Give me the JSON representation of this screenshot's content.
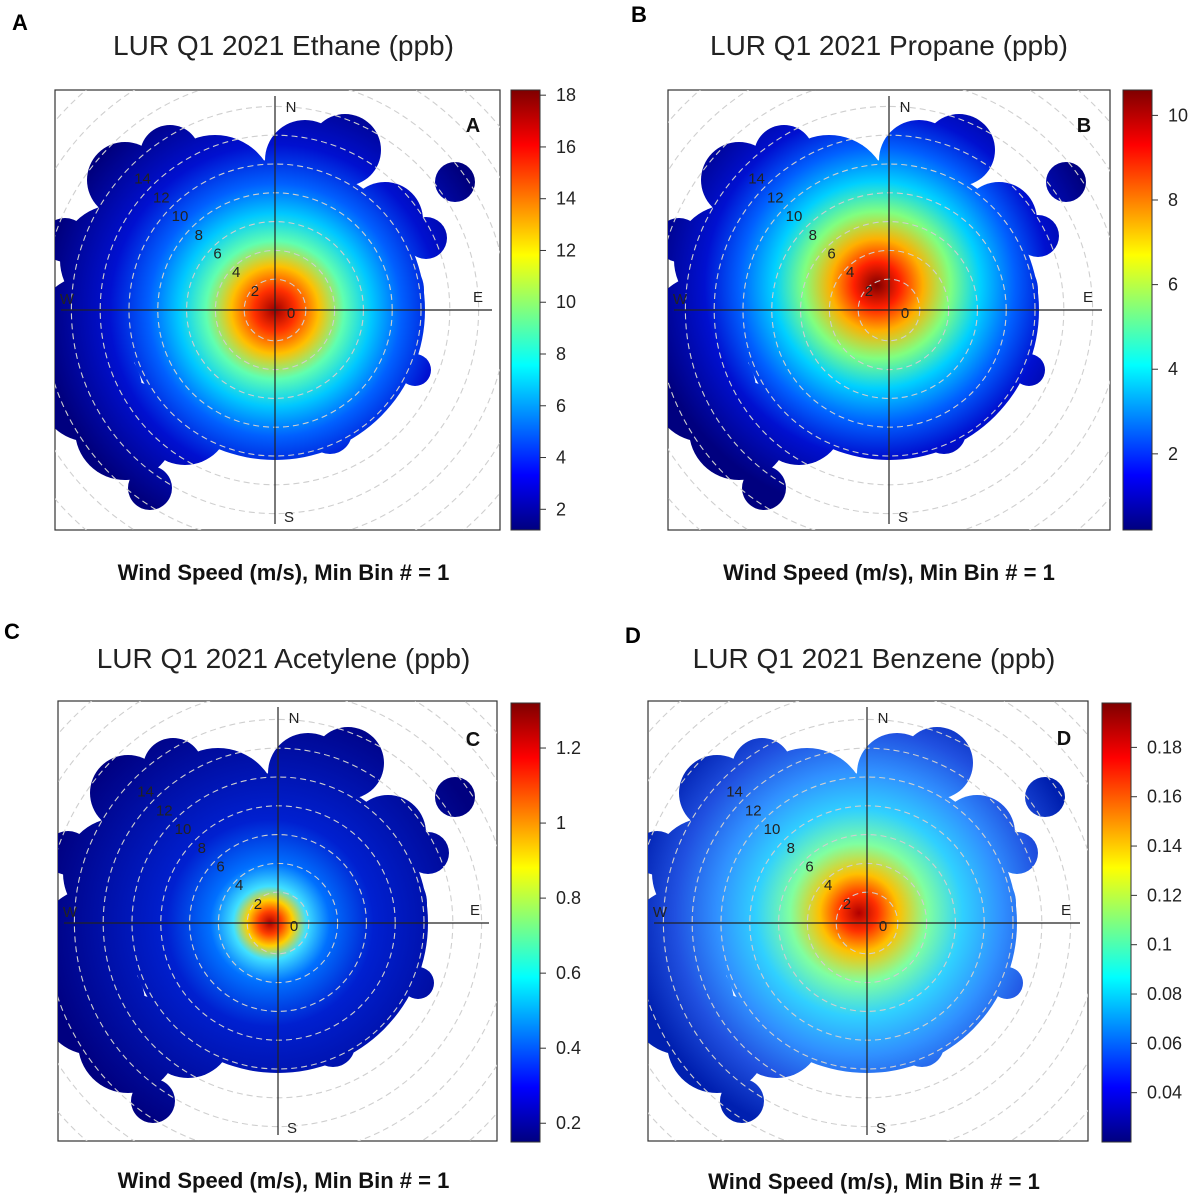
{
  "panels": [
    {
      "panel_letter": "A",
      "chart_data": {
        "type": "heatmap",
        "subtype": "polar-plot",
        "title": "LUR Q1 2021 Ethane (ppb)",
        "xlabel": "Wind Speed (m/s), Min Bin # = 1",
        "inner_label": "A",
        "directions": [
          "N",
          "E",
          "S",
          "W"
        ],
        "speed_ticks": [
          0,
          2,
          4,
          6,
          8,
          10,
          12,
          14
        ],
        "colorbar": {
          "min": 1.2,
          "max": 18.2,
          "ticks": [
            2,
            4,
            6,
            8,
            10,
            12,
            14,
            16,
            18
          ]
        },
        "hotspot": {
          "value": 18,
          "direction_deg": 0,
          "speed": 0
        }
      }
    },
    {
      "panel_letter": "B",
      "chart_data": {
        "type": "heatmap",
        "subtype": "polar-plot",
        "title": "LUR Q1 2021 Propane (ppb)",
        "xlabel": "Wind Speed (m/s), Min Bin # = 1",
        "inner_label": "B",
        "directions": [
          "N",
          "E",
          "S",
          "W"
        ],
        "speed_ticks": [
          0,
          2,
          4,
          6,
          8,
          10,
          12,
          14
        ],
        "colorbar": {
          "min": 0.2,
          "max": 10.6,
          "ticks": [
            2,
            4,
            6,
            8,
            10
          ]
        },
        "hotspot": {
          "value": 10.4,
          "direction_deg": 340,
          "speed": 2
        }
      }
    },
    {
      "panel_letter": "C",
      "chart_data": {
        "type": "heatmap",
        "subtype": "polar-plot",
        "title": "LUR Q1 2021 Acetylene (ppb)",
        "xlabel": "Wind Speed (m/s), Min Bin # = 1",
        "inner_label": "C",
        "directions": [
          "N",
          "E",
          "S",
          "W"
        ],
        "speed_ticks": [
          0,
          2,
          4,
          6,
          8,
          10,
          12,
          14
        ],
        "colorbar": {
          "min": 0.15,
          "max": 1.32,
          "ticks": [
            0.2,
            0.4,
            0.6,
            0.8,
            1,
            1.2
          ]
        },
        "hotspot": {
          "value": 1.3,
          "direction_deg": 0,
          "speed": 0
        }
      }
    },
    {
      "panel_letter": "D",
      "chart_data": {
        "type": "heatmap",
        "subtype": "polar-plot",
        "title": "LUR Q1 2021 Benzene (ppb)",
        "xlabel": "Wind Speed (m/s), Min Bin # = 1",
        "inner_label": "D",
        "directions": [
          "N",
          "E",
          "S",
          "W"
        ],
        "speed_ticks": [
          0,
          2,
          4,
          6,
          8,
          10,
          12,
          14
        ],
        "colorbar": {
          "min": 0.02,
          "max": 0.198,
          "ticks": [
            0.04,
            0.06,
            0.08,
            0.1,
            0.12,
            0.14,
            0.16,
            0.18
          ]
        },
        "hotspot": {
          "value": 0.19,
          "direction_deg": 350,
          "speed": 1
        }
      }
    }
  ]
}
